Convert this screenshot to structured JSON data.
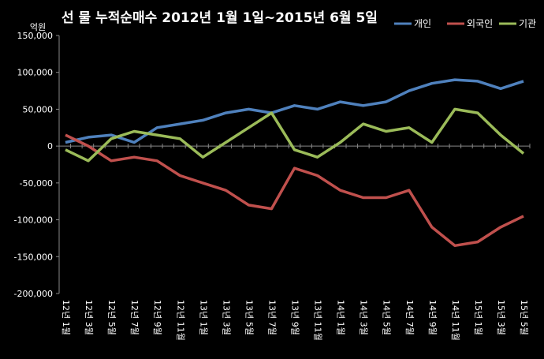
{
  "chart_data": {
    "type": "line",
    "title": "선 물 누적순매수 2012년 1월 1일~2015년 6월 5일",
    "ylabel": "억원",
    "xlabel": "",
    "ylim": [
      -200000,
      150000
    ],
    "yticks": [
      "150,000",
      "100,000",
      "50,000",
      "0",
      "-50,000",
      "-100,000",
      "-150,000",
      "-200,000"
    ],
    "grid": false,
    "legend": "top-right",
    "categories": [
      "12년 1월",
      "12년 3월",
      "12년 5월",
      "12년 7월",
      "12년 9월",
      "12년 11월",
      "13년 1월",
      "13년 3월",
      "13년 5월",
      "13년 7월",
      "13년 9월",
      "13년 11월",
      "14년 1월",
      "14년 3월",
      "14년 5월",
      "14년 7월",
      "14년 9월",
      "14년 11월",
      "15년 1월",
      "15년 3월",
      "15년 5월"
    ],
    "series": [
      {
        "name": "개인",
        "color": "#4f81bd",
        "values": [
          5000,
          12000,
          15000,
          5000,
          25000,
          30000,
          35000,
          45000,
          50000,
          45000,
          55000,
          50000,
          60000,
          55000,
          60000,
          75000,
          85000,
          90000,
          88000,
          78000,
          88000
        ]
      },
      {
        "name": "외국인",
        "color": "#c0504d",
        "values": [
          15000,
          0,
          -20000,
          -15000,
          -20000,
          -40000,
          -50000,
          -60000,
          -80000,
          -85000,
          -30000,
          -40000,
          -60000,
          -70000,
          -70000,
          -60000,
          -110000,
          -135000,
          -130000,
          -110000,
          -95000
        ]
      },
      {
        "name": "기관",
        "color": "#9bbb59",
        "values": [
          -5000,
          -20000,
          10000,
          20000,
          15000,
          10000,
          -15000,
          5000,
          25000,
          45000,
          -5000,
          -15000,
          5000,
          30000,
          20000,
          25000,
          5000,
          50000,
          45000,
          15000,
          -10000
        ]
      }
    ]
  }
}
